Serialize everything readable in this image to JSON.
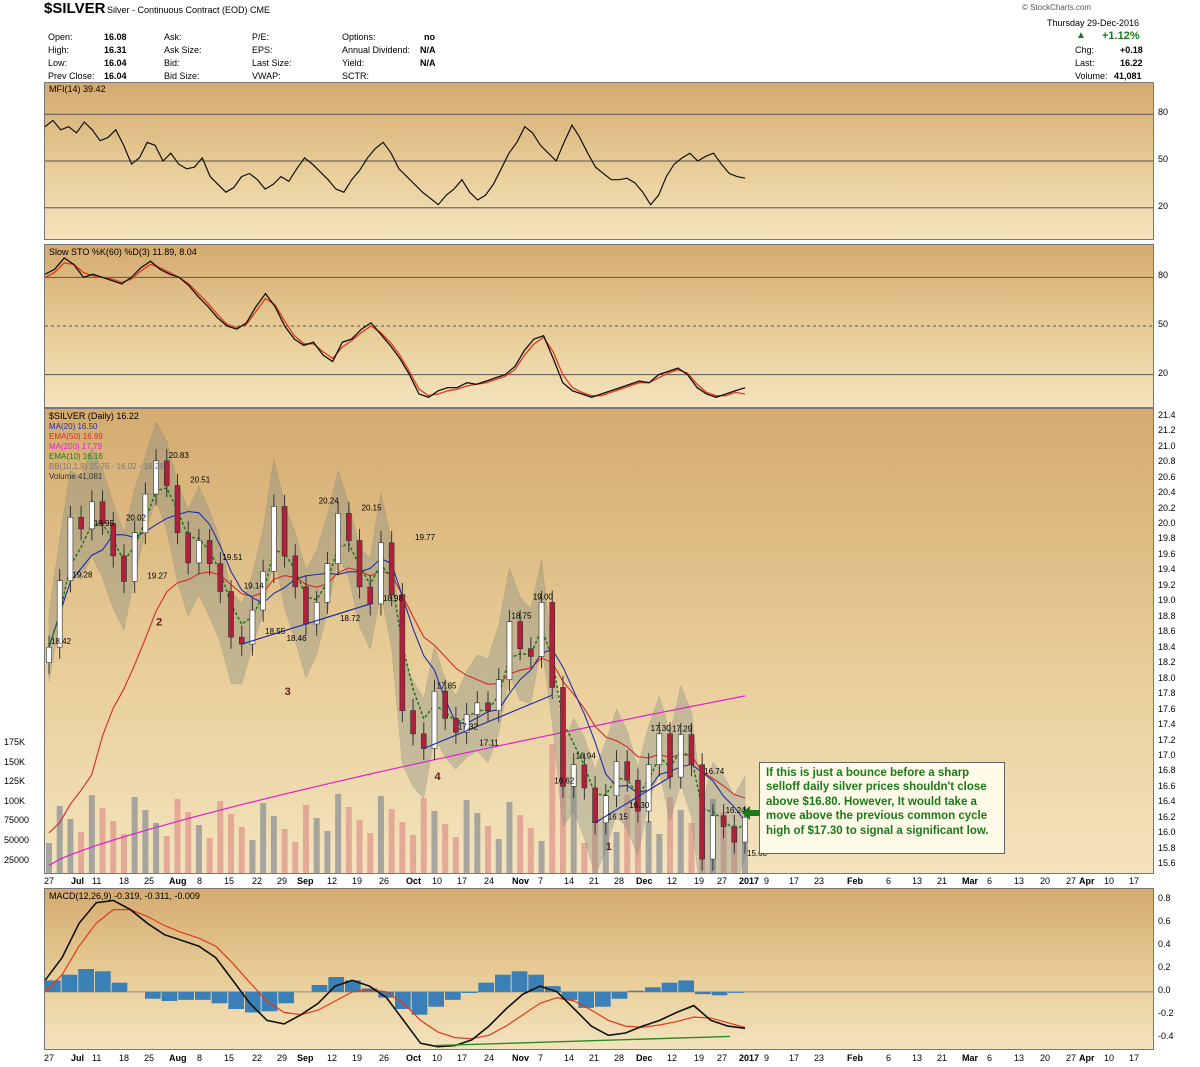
{
  "header": {
    "symbol": "$SILVER",
    "name": "Silver - Continuous Contract (EOD)",
    "exchange": "CME",
    "date": "Thursday  29-Dec-2016",
    "watermark": "© StockCharts.com",
    "fields": [
      {
        "label": "Open:",
        "value": "16.08"
      },
      {
        "label": "High:",
        "value": "16.31"
      },
      {
        "label": "Low:",
        "value": "16.04"
      },
      {
        "label": "Prev Close:",
        "value": "16.04"
      },
      {
        "label": "Ask:",
        "value": ""
      },
      {
        "label": "Ask Size:",
        "value": ""
      },
      {
        "label": "Bid:",
        "value": ""
      },
      {
        "label": "Bid Size:",
        "value": ""
      },
      {
        "label": "P/E:",
        "value": ""
      },
      {
        "label": "EPS:",
        "value": ""
      },
      {
        "label": "Last Size:",
        "value": ""
      },
      {
        "label": "VWAP:",
        "value": ""
      },
      {
        "label": "Options:",
        "value": "no"
      },
      {
        "label": "Annual Dividend:",
        "value": "N/A"
      },
      {
        "label": "Yield:",
        "value": "N/A"
      },
      {
        "label": "SCTR:",
        "value": ""
      }
    ],
    "change_pct": "+1.12%",
    "chg_label": "Chg:",
    "chg": "+0.18",
    "last_label": "Last:",
    "last": "16.22",
    "volume_label": "Volume:",
    "volume": "41,081"
  },
  "colors": {
    "up": "#1a7a1a",
    "down": "#b0203a",
    "ma20": "#1f2ea8",
    "ema50": "#d42a2a",
    "ma200": "#e020d0",
    "ema10": "#1a7a1a",
    "bb": "#888888",
    "panel_top": "#d4ab70",
    "panel_bottom": "#f3e3bd"
  },
  "annotation": "If this is just a bounce before a sharp selloff daily silver prices shouldn't close above $16.80. However, It would take a move above the previous common cycle high of $17.30 to signal a significant low.",
  "chart_data": [
    {
      "type": "line",
      "title": "MFI(14) 39.42",
      "ylim": [
        0,
        100
      ],
      "y_ticks": [
        80,
        50,
        20
      ],
      "series": [
        {
          "name": "MFI(14)",
          "values": [
            72,
            76,
            70,
            72,
            68,
            75,
            70,
            63,
            65,
            70,
            60,
            48,
            52,
            62,
            60,
            50,
            55,
            48,
            45,
            46,
            52,
            40,
            35,
            30,
            33,
            40,
            42,
            38,
            32,
            35,
            40,
            37,
            45,
            52,
            48,
            43,
            38,
            32,
            30,
            38,
            44,
            52,
            58,
            62,
            55,
            45,
            40,
            35,
            30,
            26,
            22,
            28,
            32,
            38,
            30,
            25,
            28,
            35,
            45,
            55,
            62,
            72,
            68,
            60,
            55,
            50,
            62,
            73,
            65,
            55,
            46,
            42,
            38,
            38,
            39,
            36,
            30,
            22,
            28,
            40,
            48,
            52,
            55,
            50,
            53,
            55,
            48,
            42,
            40,
            39
          ]
        }
      ]
    },
    {
      "type": "line",
      "title": "Slow STO %K(60) %D(3) 11.89, 8.04",
      "ylim": [
        0,
        100
      ],
      "y_ticks": [
        80,
        50,
        20
      ],
      "series": [
        {
          "name": "%K(60)",
          "values": [
            82,
            85,
            92,
            88,
            80,
            82,
            80,
            78,
            76,
            80,
            86,
            90,
            85,
            82,
            80,
            75,
            68,
            62,
            55,
            50,
            48,
            52,
            62,
            70,
            62,
            50,
            42,
            38,
            40,
            32,
            28,
            40,
            42,
            48,
            52,
            45,
            38,
            30,
            20,
            8,
            6,
            10,
            12,
            12,
            15,
            14,
            16,
            18,
            20,
            25,
            35,
            42,
            44,
            30,
            15,
            10,
            8,
            6,
            8,
            10,
            12,
            14,
            16,
            15,
            20,
            22,
            24,
            20,
            12,
            8,
            6,
            8,
            10,
            11.89
          ]
        },
        {
          "name": "%D(3)",
          "values": [
            80,
            83,
            89,
            88,
            83,
            81,
            80,
            79,
            77,
            79,
            84,
            88,
            86,
            83,
            80,
            76,
            70,
            64,
            57,
            51,
            49,
            51,
            59,
            67,
            63,
            53,
            44,
            39,
            39,
            34,
            30,
            37,
            41,
            46,
            50,
            46,
            40,
            32,
            22,
            11,
            7,
            8,
            10,
            11,
            13,
            14,
            15,
            17,
            19,
            23,
            32,
            39,
            43,
            34,
            20,
            12,
            9,
            7,
            7,
            9,
            11,
            13,
            15,
            15,
            18,
            21,
            23,
            21,
            14,
            9,
            7,
            7,
            9,
            8.04
          ]
        }
      ]
    },
    {
      "type": "candlestick",
      "title": "$SILVER (Daily) 16.22",
      "legend": [
        "MA(20) 16.50",
        "EMA(50) 16.99",
        "MA(200) 17.79",
        "EMA(10) 16.16",
        "BB(10,1.9) 15.76 - 16.02 - 16.28",
        "Volume 41,081"
      ],
      "ylim": [
        15.5,
        21.5
      ],
      "y_ticks": [
        21.4,
        21.2,
        21.0,
        20.8,
        20.6,
        20.4,
        20.2,
        20.0,
        19.8,
        19.6,
        19.4,
        19.2,
        19.0,
        18.8,
        18.6,
        18.4,
        18.2,
        18.0,
        17.8,
        17.6,
        17.4,
        17.2,
        17.0,
        16.8,
        16.6,
        16.4,
        16.2,
        16.0,
        15.8,
        15.6
      ],
      "volume_ticks": [
        "175K",
        "150K",
        "125K",
        "100K",
        "75000",
        "50000",
        "25000"
      ],
      "x_labels": [
        "27",
        "Jul",
        "11",
        "18",
        "25",
        "Aug",
        "8",
        "15",
        "22",
        "29",
        "Sep",
        "12",
        "19",
        "26",
        "Oct",
        "10",
        "17",
        "24",
        "Nov",
        "7",
        "14",
        "21",
        "28",
        "Dec",
        "12",
        "19",
        "27",
        "2017",
        "9",
        "17",
        "23",
        "Feb",
        "6",
        "13",
        "21",
        "Mar",
        "6",
        "13",
        "20",
        "27",
        "Apr",
        "10",
        "17"
      ],
      "close": [
        18.42,
        19.28,
        20.1,
        19.95,
        20.3,
        20.02,
        19.6,
        19.27,
        19.9,
        20.4,
        20.83,
        20.51,
        19.9,
        19.51,
        19.8,
        19.5,
        19.14,
        18.55,
        18.46,
        18.9,
        19.4,
        20.24,
        19.6,
        19.2,
        18.72,
        19.0,
        19.5,
        20.15,
        19.8,
        19.2,
        18.98,
        19.77,
        19.1,
        17.6,
        17.3,
        17.11,
        17.85,
        17.5,
        17.32,
        17.55,
        17.7,
        17.6,
        18.0,
        18.75,
        18.4,
        18.3,
        19.0,
        17.9,
        16.62,
        16.9,
        16.6,
        16.15,
        16.5,
        16.94,
        16.7,
        16.3,
        16.9,
        17.3,
        16.74,
        17.29,
        16.9,
        15.68,
        16.24,
        16.1,
        15.9,
        16.22
      ],
      "labels": [
        {
          "text": "18.42",
          "value": 18.42
        },
        {
          "text": "19.28",
          "value": 19.28
        },
        {
          "text": "19.95",
          "value": 19.95
        },
        {
          "text": "20.02",
          "value": 20.02
        },
        {
          "text": "19.27",
          "value": 19.27
        },
        {
          "text": "20.83",
          "value": 20.83
        },
        {
          "text": "20.51",
          "value": 20.51
        },
        {
          "text": "19.51",
          "value": 19.51
        },
        {
          "text": "19.14",
          "value": 19.14
        },
        {
          "text": "18.55",
          "value": 18.55
        },
        {
          "text": "18.46",
          "value": 18.46
        },
        {
          "text": "20.24",
          "value": 20.24
        },
        {
          "text": "18.72",
          "value": 18.72
        },
        {
          "text": "20.15",
          "value": 20.15
        },
        {
          "text": "18.98",
          "value": 18.98
        },
        {
          "text": "19.77",
          "value": 19.77
        },
        {
          "text": "17.85",
          "value": 17.85
        },
        {
          "text": "17.32",
          "value": 17.32
        },
        {
          "text": "17.11",
          "value": 17.11
        },
        {
          "text": "18.75",
          "value": 18.75
        },
        {
          "text": "19.00",
          "value": 19.0
        },
        {
          "text": "16.62",
          "value": 16.62
        },
        {
          "text": "16.94",
          "value": 16.94
        },
        {
          "text": "16.15",
          "value": 16.15
        },
        {
          "text": "16.30",
          "value": 16.3
        },
        {
          "text": "17.30",
          "value": 17.3
        },
        {
          "text": "17.29",
          "value": 17.29
        },
        {
          "text": "16.74",
          "value": 16.74
        },
        {
          "text": "16.24",
          "value": 16.24
        },
        {
          "text": "15.68",
          "value": 15.68
        }
      ],
      "cycle_labels": [
        "2",
        "3",
        "4",
        "1"
      ]
    },
    {
      "type": "line",
      "title": "MACD(12,26,9) -0.319, -0.311, -0.009",
      "ylim": [
        -0.5,
        0.9
      ],
      "y_ticks": [
        0.8,
        0.6,
        0.4,
        0.2,
        0.0,
        -0.2,
        -0.4
      ],
      "series": [
        {
          "name": "MACD(12,26,9)",
          "values": [
            0.1,
            0.3,
            0.6,
            0.78,
            0.8,
            0.72,
            0.6,
            0.5,
            0.45,
            0.4,
            0.3,
            0.1,
            -0.1,
            -0.25,
            -0.28,
            -0.2,
            -0.1,
            0.05,
            0.1,
            0.05,
            -0.05,
            -0.25,
            -0.45,
            -0.48,
            -0.47,
            -0.42,
            -0.3,
            -0.15,
            -0.02,
            0.05,
            0.0,
            -0.15,
            -0.3,
            -0.38,
            -0.36,
            -0.3,
            -0.25,
            -0.18,
            -0.12,
            -0.25,
            -0.3,
            -0.319
          ]
        },
        {
          "name": "Signal",
          "values": [
            0.0,
            0.15,
            0.4,
            0.6,
            0.72,
            0.72,
            0.66,
            0.58,
            0.52,
            0.47,
            0.4,
            0.25,
            0.08,
            -0.08,
            -0.18,
            -0.2,
            -0.16,
            -0.08,
            0.0,
            0.02,
            0.0,
            -0.1,
            -0.25,
            -0.35,
            -0.4,
            -0.41,
            -0.38,
            -0.3,
            -0.2,
            -0.1,
            -0.05,
            -0.08,
            -0.16,
            -0.25,
            -0.3,
            -0.31,
            -0.29,
            -0.26,
            -0.22,
            -0.23,
            -0.27,
            -0.311
          ]
        },
        {
          "name": "Histogram",
          "values": [
            0.1,
            0.15,
            0.2,
            0.18,
            0.08,
            0.0,
            -0.06,
            -0.08,
            -0.07,
            -0.07,
            -0.1,
            -0.15,
            -0.18,
            -0.17,
            -0.1,
            0.0,
            0.06,
            0.13,
            0.1,
            0.03,
            -0.05,
            -0.15,
            -0.2,
            -0.13,
            -0.07,
            -0.01,
            0.08,
            0.15,
            0.18,
            0.15,
            0.05,
            -0.07,
            -0.14,
            -0.13,
            -0.06,
            0.01,
            0.04,
            0.08,
            0.1,
            -0.02,
            -0.03,
            -0.009
          ]
        }
      ]
    }
  ]
}
